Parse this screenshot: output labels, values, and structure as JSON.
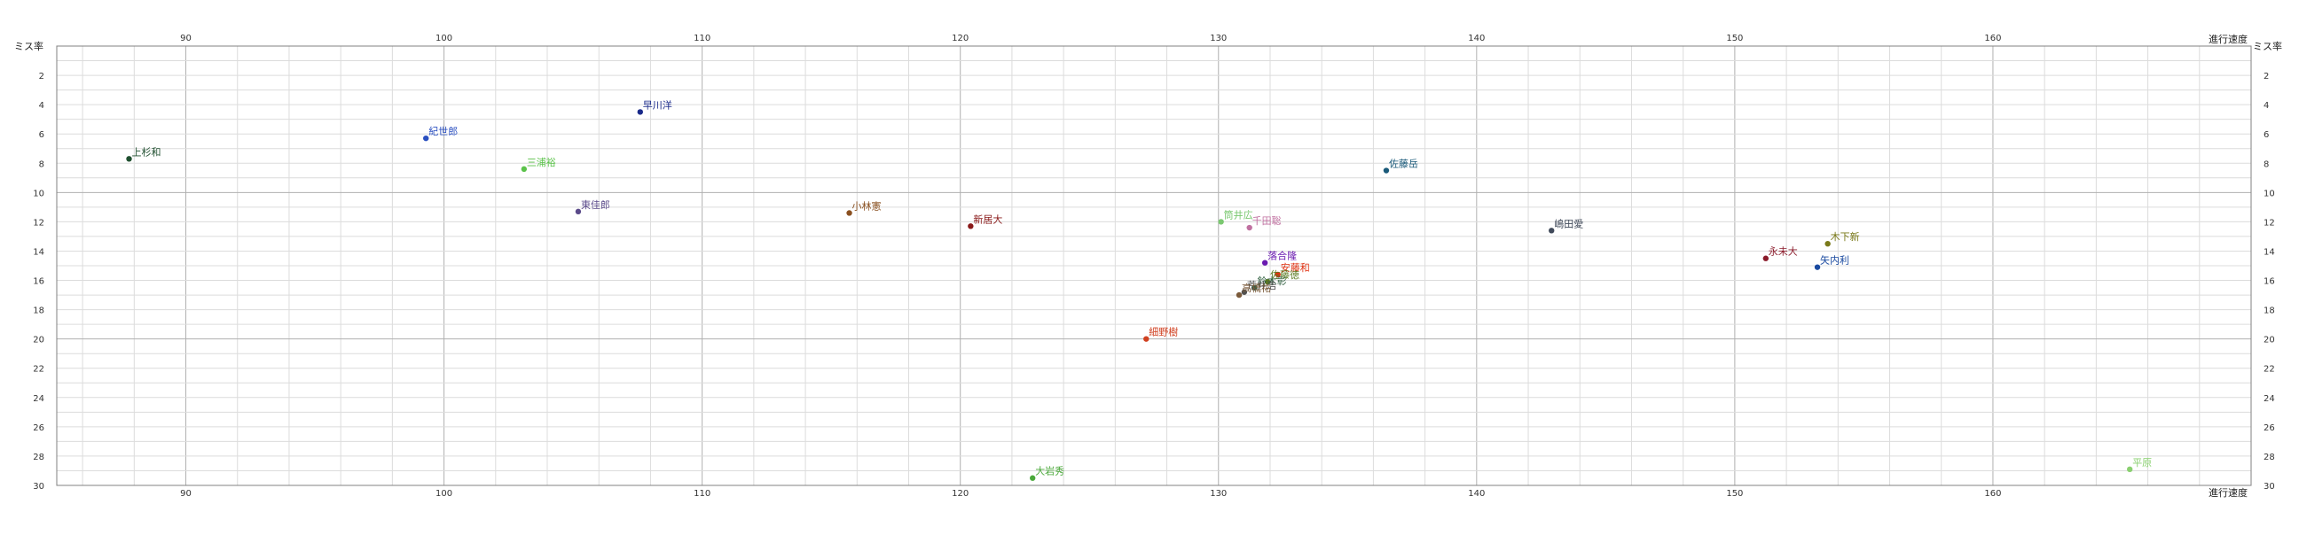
{
  "chart_data": {
    "type": "scatter",
    "xlabel": "進行速度",
    "ylabel": "ミス率",
    "xlim": [
      85,
      170
    ],
    "ylim": [
      30,
      0
    ],
    "y_inverted": true,
    "grid": true,
    "x_ticks": [
      90,
      100,
      110,
      120,
      130,
      140,
      150,
      160
    ],
    "x_minor_step": 2,
    "y_ticks": [
      2,
      4,
      6,
      8,
      10,
      12,
      14,
      16,
      18,
      20,
      22,
      24,
      26,
      28,
      30
    ],
    "y_minor_step": 1,
    "axes_on_both_sides": true,
    "points": [
      {
        "label": "上杉和",
        "x": 87.8,
        "y": 7.7,
        "color": "#1f4f2f"
      },
      {
        "label": "紀世郎",
        "x": 99.3,
        "y": 6.3,
        "color": "#2a4fc0"
      },
      {
        "label": "三浦裕",
        "x": 103.1,
        "y": 8.4,
        "color": "#5bc24a"
      },
      {
        "label": "早川洋",
        "x": 107.6,
        "y": 4.5,
        "color": "#1a2a8a"
      },
      {
        "label": "東佳郎",
        "x": 105.2,
        "y": 11.3,
        "color": "#5a4a8a"
      },
      {
        "label": "小林憲",
        "x": 115.7,
        "y": 11.4,
        "color": "#8a5020"
      },
      {
        "label": "新居大",
        "x": 120.4,
        "y": 12.3,
        "color": "#8a1a1a"
      },
      {
        "label": "細野樹",
        "x": 127.2,
        "y": 20.0,
        "color": "#d04020"
      },
      {
        "label": "大岩秀",
        "x": 122.8,
        "y": 29.5,
        "color": "#4aa83a"
      },
      {
        "label": "筒井広",
        "x": 130.1,
        "y": 12.0,
        "color": "#7ac870"
      },
      {
        "label": "千田聡",
        "x": 131.2,
        "y": 12.4,
        "color": "#c070a0"
      },
      {
        "label": "落合隆",
        "x": 131.8,
        "y": 14.8,
        "color": "#6a1ab0"
      },
      {
        "label": "安藤和",
        "x": 132.3,
        "y": 15.6,
        "color": "#e03010"
      },
      {
        "label": "佐藤徳",
        "x": 131.9,
        "y": 16.1,
        "color": "#5a7a20"
      },
      {
        "label": "鈴木彰",
        "x": 131.4,
        "y": 16.5,
        "color": "#306040"
      },
      {
        "label": "荒井浩",
        "x": 131.0,
        "y": 16.8,
        "color": "#505050"
      },
      {
        "label": "高橋祐",
        "x": 130.8,
        "y": 17.0,
        "color": "#7a5a3a"
      },
      {
        "label": "佐藤岳",
        "x": 136.5,
        "y": 8.5,
        "color": "#1a5a7a"
      },
      {
        "label": "嶋田愛",
        "x": 142.9,
        "y": 12.6,
        "color": "#404a5a"
      },
      {
        "label": "永未大",
        "x": 151.2,
        "y": 14.5,
        "color": "#8a1a2a"
      },
      {
        "label": "木下新",
        "x": 153.6,
        "y": 13.5,
        "color": "#7a7a1a"
      },
      {
        "label": "矢内利",
        "x": 153.2,
        "y": 15.1,
        "color": "#1a4aa0"
      },
      {
        "label": "平原",
        "x": 165.3,
        "y": 28.9,
        "color": "#8ad070"
      }
    ]
  }
}
